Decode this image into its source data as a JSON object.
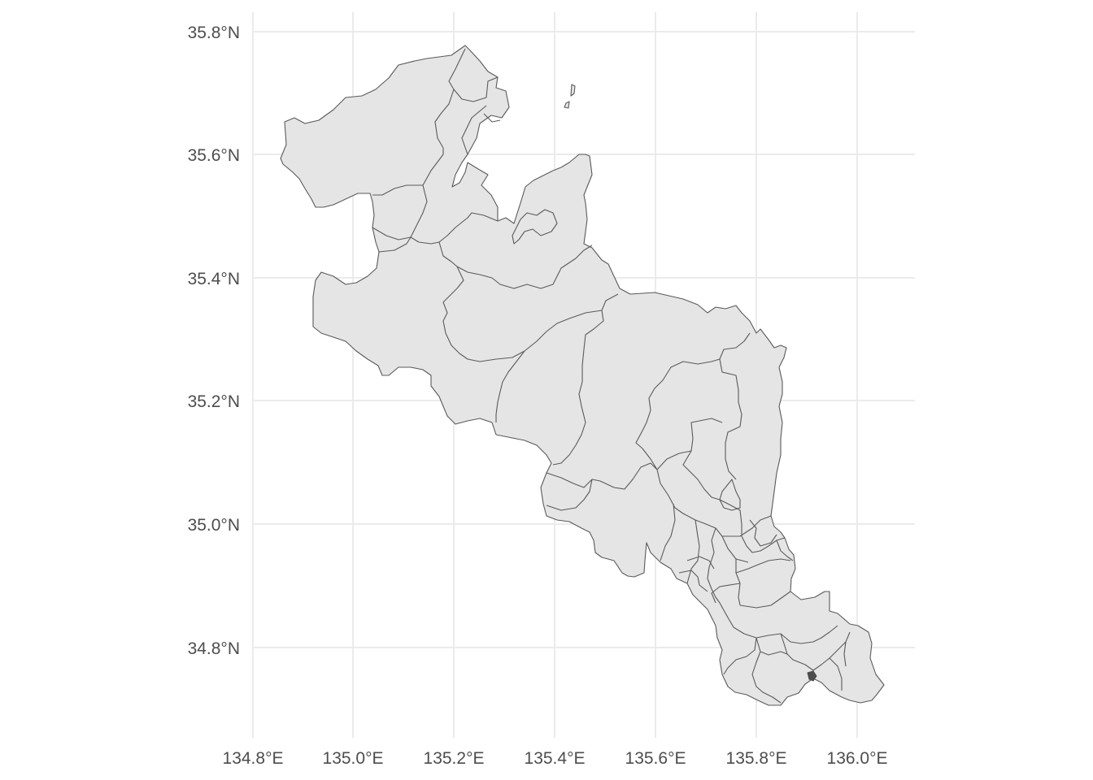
{
  "map": {
    "x_ticks": [
      "134.8°E",
      "135.0°E",
      "135.2°E",
      "135.4°E",
      "135.6°E",
      "135.8°E",
      "136.0°E"
    ],
    "y_ticks": [
      "35.8°N",
      "35.6°N",
      "35.4°N",
      "35.2°N",
      "35.0°N",
      "34.8°N"
    ],
    "fill_color": "#e5e5e5",
    "border_color": "#5a5a5a",
    "grid_color": "#ebebeb",
    "tick_color": "#4d4d4d"
  }
}
